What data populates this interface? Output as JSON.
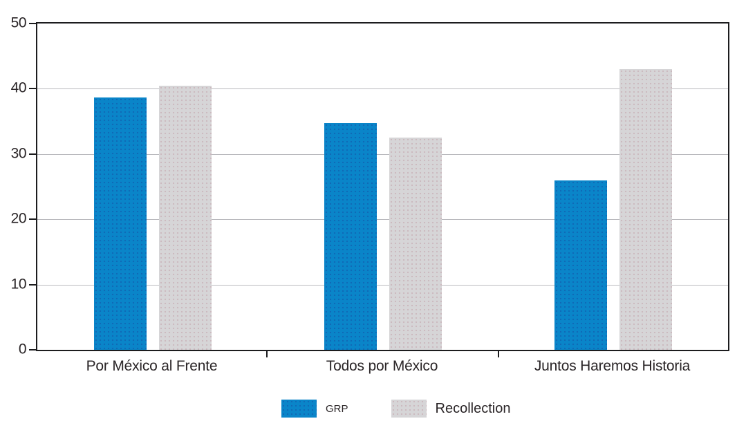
{
  "chart_data": {
    "type": "bar",
    "title": "",
    "xlabel": "",
    "ylabel": "",
    "categories": [
      "Por México al Frente",
      "Todos por México",
      "Juntos Haremos Historia"
    ],
    "series": [
      {
        "name": "GRP",
        "color": "#0a85c9",
        "values": [
          38.7,
          34.7,
          26.0
        ]
      },
      {
        "name": "Recollection",
        "color": "#d6d5d7",
        "values": [
          40.5,
          32.5,
          43.0
        ]
      }
    ],
    "ylim": [
      0,
      50
    ],
    "yticks": [
      0,
      10,
      20,
      30,
      40,
      50
    ],
    "gridlines": [
      10,
      20,
      30,
      40
    ],
    "grid": "horizontal",
    "legend_position": "bottom",
    "plot_border": "full-box"
  },
  "colors": {
    "grp_blue": "#0a85c9",
    "recollection_gray": "#d6d5d7",
    "gridline": "#b9b9bd",
    "axis": "#1c1c1e",
    "text": "#2a2527"
  }
}
